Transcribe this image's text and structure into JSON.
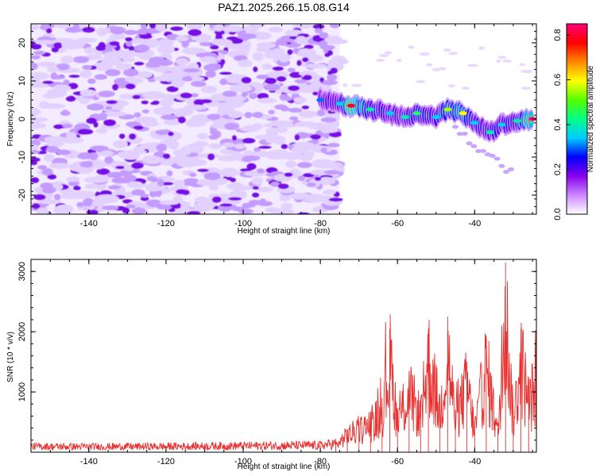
{
  "chart_data": [
    {
      "type": "heatmap",
      "title": "PAZ1.2025.266.15.08.G14",
      "xlabel": "Height of straight line (km)",
      "ylabel": "Frequency (Hz)",
      "xlim": [
        -155,
        -24
      ],
      "ylim": [
        -25,
        25
      ],
      "x_ticks": [
        -140,
        -120,
        -100,
        -80,
        -60,
        -40
      ],
      "y_ticks": [
        -20,
        -10,
        0,
        10,
        20
      ],
      "colorbar": {
        "label": "Normalized spectral amplitude",
        "range": [
          0.0,
          0.85
        ],
        "ticks": [
          0.0,
          0.2,
          0.4,
          0.6,
          0.8
        ],
        "colors": [
          "#ffffff",
          "#cc88ff",
          "#8800ee",
          "#0000ff",
          "#00ccff",
          "#00ff88",
          "#55ff00",
          "#ffff00",
          "#ff8800",
          "#ff0000",
          "#ff0077"
        ]
      },
      "noise_region": {
        "x_from": -155,
        "x_to": -75,
        "y_from": -25,
        "y_to": 25,
        "typical_amplitude": 0.05
      },
      "signal_ridge": [
        {
          "x": -80,
          "y": 5,
          "amp": 0.3
        },
        {
          "x": -75,
          "y": 4,
          "amp": 0.35
        },
        {
          "x": -72,
          "y": 3.5,
          "amp": 0.8
        },
        {
          "x": -67,
          "y": 2.5,
          "amp": 0.4
        },
        {
          "x": -62,
          "y": 1.5,
          "amp": 0.35
        },
        {
          "x": -58,
          "y": 0.5,
          "amp": 0.4
        },
        {
          "x": -55,
          "y": 1.5,
          "amp": 0.45
        },
        {
          "x": -50,
          "y": 0.5,
          "amp": 0.35
        },
        {
          "x": -47,
          "y": 2.5,
          "amp": 0.55
        },
        {
          "x": -43,
          "y": 1.5,
          "amp": 0.6
        },
        {
          "x": -40,
          "y": -1,
          "amp": 0.35
        },
        {
          "x": -36,
          "y": -3.5,
          "amp": 0.4
        },
        {
          "x": -33,
          "y": -1.5,
          "amp": 0.35
        },
        {
          "x": -29,
          "y": -0.5,
          "amp": 0.4
        },
        {
          "x": -25,
          "y": 0,
          "amp": 0.85
        }
      ]
    },
    {
      "type": "line",
      "xlabel": "Height of straight line (km)",
      "ylabel": "SNR (10 * v/v)",
      "xlim": [
        -155,
        -24
      ],
      "ylim": [
        0,
        3200
      ],
      "x_ticks": [
        -140,
        -120,
        -100,
        -80,
        -60,
        -40
      ],
      "y_ticks": [
        1000,
        2000,
        3000
      ],
      "color": "#e8312f",
      "series": [
        {
          "values": [
            {
              "x": -155,
              "y": 100
            },
            {
              "x": -140,
              "y": 95
            },
            {
              "x": -120,
              "y": 100
            },
            {
              "x": -100,
              "y": 110
            },
            {
              "x": -80,
              "y": 120
            },
            {
              "x": -76,
              "y": 150
            },
            {
              "x": -73,
              "y": 380
            },
            {
              "x": -70,
              "y": 500
            },
            {
              "x": -67,
              "y": 600
            },
            {
              "x": -64,
              "y": 900
            },
            {
              "x": -62,
              "y": 2050
            },
            {
              "x": -60,
              "y": 700
            },
            {
              "x": -57,
              "y": 1300
            },
            {
              "x": -54,
              "y": 800
            },
            {
              "x": -52,
              "y": 2050
            },
            {
              "x": -49,
              "y": 900
            },
            {
              "x": -47,
              "y": 2250
            },
            {
              "x": -45,
              "y": 700
            },
            {
              "x": -42,
              "y": 1500
            },
            {
              "x": -40,
              "y": 500
            },
            {
              "x": -37,
              "y": 1900
            },
            {
              "x": -34,
              "y": 400
            },
            {
              "x": -32,
              "y": 3150
            },
            {
              "x": -30,
              "y": 700
            },
            {
              "x": -28,
              "y": 2050
            },
            {
              "x": -26,
              "y": 1100
            },
            {
              "x": -24,
              "y": 1500
            }
          ]
        }
      ]
    }
  ]
}
